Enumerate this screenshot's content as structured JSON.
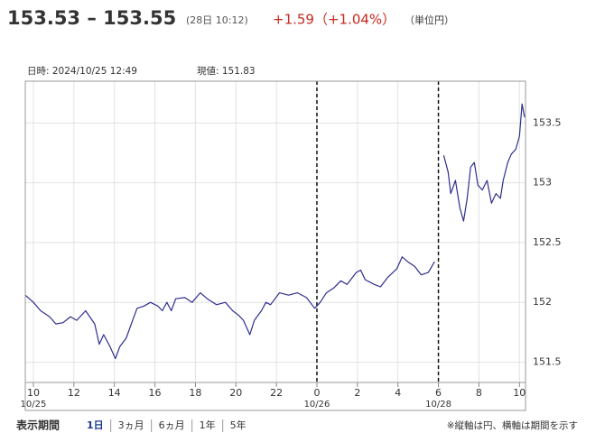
{
  "header": {
    "price": "153.53 – 153.55",
    "time": "(28日 10:12)",
    "change": "+1.59（+1.04%）",
    "unit": "（単位円）"
  },
  "info": {
    "datetime": "日時: 2024/10/25  12:49",
    "current": "現値: 151.83"
  },
  "chart_data": {
    "type": "line",
    "x": [
      9.6,
      10.0,
      10.36,
      10.8,
      11.11,
      11.47,
      11.83,
      12.14,
      12.58,
      13.03,
      13.25,
      13.47,
      13.78,
      14.05,
      14.27,
      14.58,
      14.9,
      15.12,
      15.47,
      15.78,
      16.14,
      16.37,
      16.59,
      16.81,
      17.03,
      17.48,
      17.84,
      18.24,
      18.59,
      19.04,
      19.48,
      19.84,
      20.15,
      20.37,
      20.69,
      20.91,
      21.26,
      21.48,
      21.71,
      22.15,
      22.6,
      23.04,
      23.49,
      23.89,
      24.16,
      24.47,
      24.83,
      25.18,
      25.49,
      25.94,
      26.16,
      26.38,
      26.83,
      27.14,
      27.5,
      27.94,
      28.21,
      28.48,
      28.83,
      29.15,
      29.5,
      29.81,
      29.95,
      30.26,
      30.48,
      30.61,
      30.84,
      31.06,
      31.24,
      31.42,
      31.59,
      31.77,
      31.95,
      32.17,
      32.4,
      32.62,
      32.84,
      33.06,
      33.2,
      33.42,
      33.6,
      33.82,
      34.0,
      34.13,
      34.25
    ],
    "series": [
      {
        "color": "#2e2e8f",
        "values": [
          152.06,
          152.0,
          151.93,
          151.88,
          151.82,
          151.83,
          151.88,
          151.85,
          151.93,
          151.82,
          151.65,
          151.73,
          151.63,
          151.53,
          151.63,
          151.7,
          151.85,
          151.95,
          151.97,
          152.0,
          151.97,
          151.93,
          152.0,
          151.93,
          152.03,
          152.04,
          152.0,
          152.08,
          152.03,
          151.98,
          152.0,
          151.93,
          151.89,
          151.85,
          151.73,
          151.85,
          151.93,
          152.0,
          151.98,
          152.08,
          152.06,
          152.08,
          152.04,
          151.95,
          152.0,
          152.08,
          152.12,
          152.18,
          152.15,
          152.25,
          152.27,
          152.19,
          152.15,
          152.13,
          152.21,
          152.28,
          152.38,
          152.34,
          152.3,
          152.23,
          152.25,
          152.34,
          null,
          153.23,
          153.09,
          152.91,
          153.02,
          152.79,
          152.68,
          152.87,
          153.13,
          153.17,
          152.98,
          152.94,
          153.02,
          152.83,
          152.91,
          152.87,
          153.02,
          153.17,
          153.24,
          153.28,
          153.39,
          153.66,
          153.55
        ]
      }
    ],
    "xlim": [
      9.6,
      34.3
    ],
    "xticks": [
      10,
      12,
      14,
      16,
      18,
      20,
      22,
      {
        "value": 24,
        "label": "0"
      },
      {
        "value": 26,
        "label": "2"
      },
      {
        "value": 28,
        "label": "4"
      },
      {
        "value": 30,
        "label": "6"
      },
      {
        "value": 32,
        "label": "8"
      },
      {
        "value": 34,
        "label": "10"
      }
    ],
    "date_labels": [
      {
        "value": 10,
        "label": "10/25"
      },
      {
        "value": 24,
        "label": "10/26"
      },
      {
        "value": 30,
        "label": "10/28"
      }
    ],
    "separators": [
      24,
      30
    ],
    "ylim": [
      151.33,
      153.85
    ],
    "yticks": [
      151.5,
      152,
      152.5,
      153,
      153.5
    ],
    "grid": true
  },
  "footer": {
    "label": "表示期間",
    "periods": [
      "1日",
      "3ヵ月",
      "6ヵ月",
      "1年",
      "5年"
    ],
    "note": "※縦軸は円、横軸は期間を示す"
  }
}
